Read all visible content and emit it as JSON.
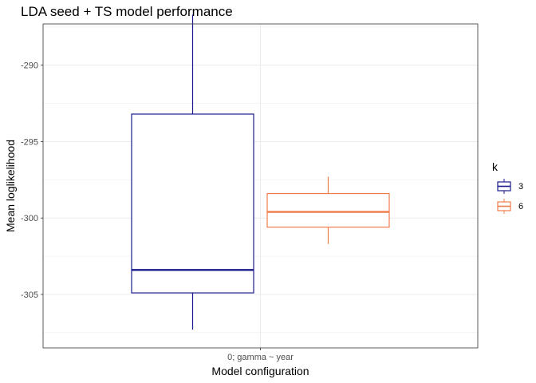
{
  "chart_data": {
    "type": "boxplot",
    "title": "LDA seed + TS model performance",
    "xlabel": "Model configuration",
    "ylabel": "Mean loglikelihood",
    "categories": [
      "0; gamma ~ year"
    ],
    "ylim": [
      -308.5,
      -287.3
    ],
    "yticks": [
      -305,
      -300,
      -295,
      -290
    ],
    "grid": true,
    "legend": {
      "title": "k",
      "position": "right"
    },
    "series": [
      {
        "name": "3",
        "color": "#1a1a8c",
        "category": "0; gamma ~ year",
        "whisker_low": -307.3,
        "q1": -304.9,
        "median": -303.4,
        "q3": -293.2,
        "whisker_high": -286.7
      },
      {
        "name": "6",
        "color": "#f07c4a",
        "category": "0; gamma ~ year",
        "whisker_low": -301.7,
        "q1": -300.6,
        "median": -299.6,
        "q3": -298.4,
        "whisker_high": -297.3
      }
    ]
  }
}
